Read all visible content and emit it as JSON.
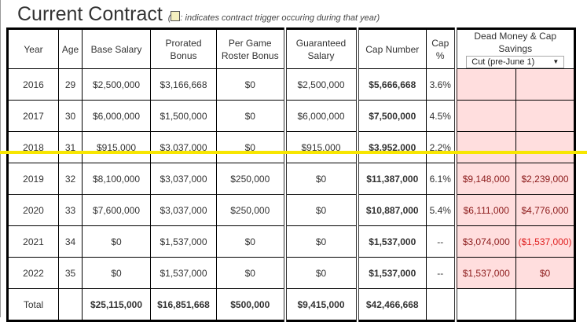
{
  "title": "Current Contract",
  "note": ": indicates contract trigger occuring during that year",
  "headers": [
    "Year",
    "Age",
    "Base Salary",
    "Prorated Bonus",
    "Per Game Roster Bonus",
    "Guaranteed Salary",
    "Cap Number",
    "Cap %",
    "Dead Money & Cap Savings"
  ],
  "select": {
    "value": "Cut (pre-June 1)"
  },
  "rows": [
    [
      "2016",
      "29",
      "$2,500,000",
      "$3,166,668",
      "$0",
      "$2,500,000",
      "$5,666,668",
      "3.6%",
      "",
      ""
    ],
    [
      "2017",
      "30",
      "$6,000,000",
      "$1,500,000",
      "$0",
      "$6,000,000",
      "$7,500,000",
      "4.5%",
      "",
      ""
    ],
    [
      "2018",
      "31",
      "$915,000",
      "$3,037,000",
      "$0",
      "$915,000",
      "$3,952,000",
      "2.2%",
      "",
      ""
    ],
    [
      "2019",
      "32",
      "$8,100,000",
      "$3,037,000",
      "$250,000",
      "$0",
      "$11,387,000",
      "6.1%",
      "$9,148,000",
      "$2,239,000"
    ],
    [
      "2020",
      "33",
      "$7,600,000",
      "$3,037,000",
      "$250,000",
      "$0",
      "$10,887,000",
      "5.4%",
      "$6,111,000",
      "$4,776,000"
    ],
    [
      "2021",
      "34",
      "$0",
      "$1,537,000",
      "$0",
      "$0",
      "$1,537,000",
      "--",
      "$3,074,000",
      "($1,537,000)"
    ],
    [
      "2022",
      "35",
      "$0",
      "$1,537,000",
      "$0",
      "$0",
      "$1,537,000",
      "--",
      "$1,537,000",
      "$0"
    ]
  ],
  "total": [
    "Total",
    "",
    "$25,115,000",
    "$16,851,668",
    "$500,000",
    "$9,415,000",
    "$42,466,668",
    "",
    "",
    ""
  ],
  "colors": {
    "pink": "#ffdede",
    "dead": "#8b1a1a",
    "negative": "#e02020",
    "divider": "#f7e600"
  }
}
